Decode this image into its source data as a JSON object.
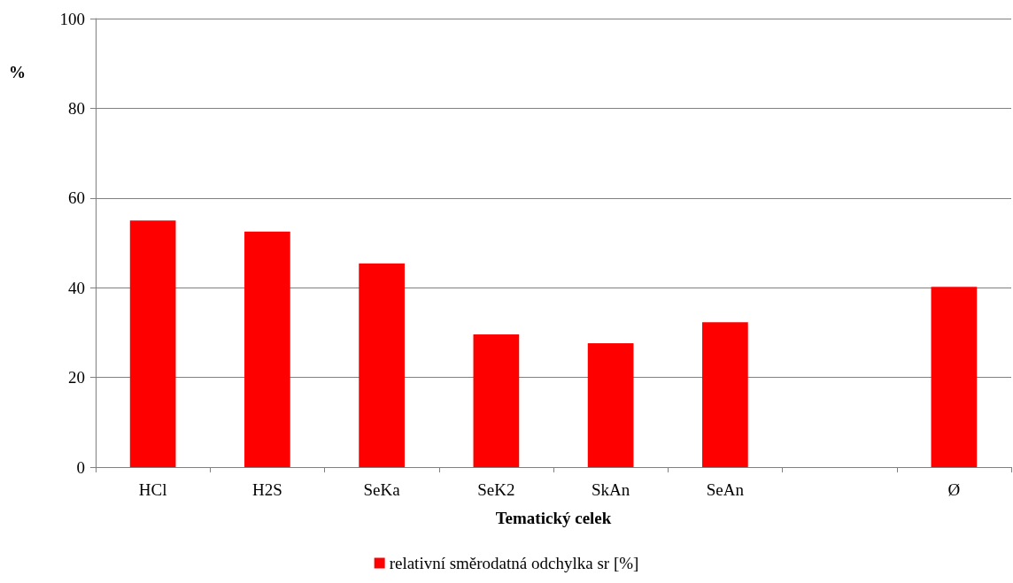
{
  "chart_data": {
    "type": "bar",
    "xlabel": "Tematický celek",
    "ylabel": "%",
    "categories": [
      "HCl",
      "H2S",
      "SeKa",
      "SeK2",
      "SkAn",
      "SeAn",
      null,
      "Ø"
    ],
    "series": [
      {
        "name": "relativní směrodatná odchylka sr [%]",
        "color": "#ff0000",
        "values": [
          55,
          52.5,
          45.4,
          29.6,
          27.6,
          32.3,
          null,
          40.2
        ]
      }
    ],
    "ylim": [
      0,
      100
    ],
    "yticks": [
      0,
      20,
      40,
      60,
      80,
      100
    ],
    "grid": "y",
    "legend": "bottom"
  }
}
